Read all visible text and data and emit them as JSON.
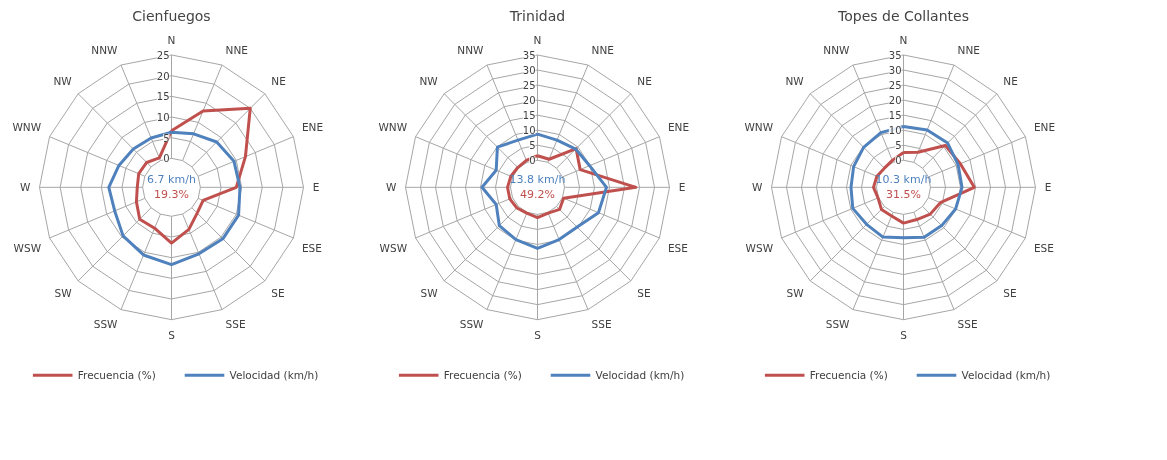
{
  "chart_data": [
    {
      "type": "radar",
      "title": "Cienfuegos",
      "categories": [
        "N",
        "NNE",
        "NE",
        "ENE",
        "E",
        "ESE",
        "SE",
        "SSE",
        "S",
        "SSW",
        "SW",
        "WSW",
        "W",
        "WNW",
        "NW",
        "NNW"
      ],
      "ylim": [
        -7,
        25
      ],
      "yticks": [
        0,
        5,
        10,
        15,
        20,
        25
      ],
      "grid": true,
      "legend": "bottom",
      "line_style": "solid",
      "marker": "none",
      "annotations": [
        "6.7 km/h",
        "19.3%"
      ],
      "series": [
        {
          "name": "Frecuencia (%)",
          "color": "#c0504d",
          "values": [
            6.7,
            13,
            20,
            12.4,
            8.7,
            1.3,
            1.8,
            4,
            6.5,
            3.7,
            3.9,
            2.2,
            1.3,
            1.6,
            1.5,
            0.7
          ]
        },
        {
          "name": "Velocidad (km/h)",
          "color": "#4f81bd",
          "values": [
            6.3,
            7,
            8.5,
            9.4,
            9.6,
            10.6,
            10.6,
            10.4,
            11.7,
            10.7,
            9.6,
            7.9,
            8.2,
            6.8,
            6.1,
            5.9
          ]
        }
      ]
    },
    {
      "type": "radar",
      "title": "Trinidad",
      "categories": [
        "N",
        "NNE",
        "NE",
        "ENE",
        "E",
        "ESE",
        "SE",
        "SSE",
        "S",
        "SSW",
        "SW",
        "WSW",
        "W",
        "WNW",
        "NW",
        "NNW"
      ],
      "ylim": [
        -9,
        35
      ],
      "yticks": [
        0,
        5,
        10,
        15,
        20,
        25,
        30,
        35
      ],
      "grid": true,
      "legend": "bottom",
      "line_style": "solid",
      "marker": "none",
      "annotations": [
        "13.8 km/h",
        "49.2%"
      ],
      "series": [
        {
          "name": "Frecuencia (%)",
          "color": "#c0504d",
          "values": [
            1.5,
            1.1,
            9.2,
            6.4,
            23.8,
            0.4,
            1.4,
            0.3,
            1.1,
            0.3,
            0.7,
            1,
            1,
            0.6,
            0.3,
            0.7
          ]
        },
        {
          "name": "Velocidad (km/h)",
          "color": "#4f81bd",
          "values": [
            8.7,
            8,
            9,
            9.8,
            14,
            13,
            9.7,
            9.8,
            11.3,
            9.8,
            9,
            5.9,
            9.5,
            5.9,
            9.9,
            8
          ]
        }
      ]
    },
    {
      "type": "radar",
      "title": "Topes de Collantes",
      "categories": [
        "N",
        "NNE",
        "NE",
        "ENE",
        "E",
        "ESE",
        "SE",
        "SSE",
        "S",
        "SSW",
        "SW",
        "WSW",
        "W",
        "WNW",
        "NW",
        "NNW"
      ],
      "ylim": [
        -9,
        35
      ],
      "yticks": [
        0,
        5,
        10,
        15,
        20,
        25,
        30,
        35
      ],
      "grid": true,
      "legend": "bottom",
      "line_style": "solid",
      "marker": "none",
      "annotations": [
        "10.3 km/h",
        "31.5%"
      ],
      "series": [
        {
          "name": "Frecuencia (%)",
          "color": "#c0504d",
          "values": [
            2.6,
            3.6,
            10.7,
            11.5,
            14.6,
            4.3,
            3.6,
            2.6,
            2.9,
            1.3,
            1.4,
            0.2,
            1,
            0.6,
            0,
            0.7
          ]
        },
        {
          "name": "Velocidad (km/h)",
          "color": "#4f81bd",
          "values": [
            11.2,
            11.6,
            11.8,
            10.7,
            10.5,
            9.8,
            9,
            9,
            7.8,
            8.9,
            8.4,
            9.3,
            8.5,
            9,
            9.8,
            10.7
          ]
        }
      ]
    }
  ]
}
